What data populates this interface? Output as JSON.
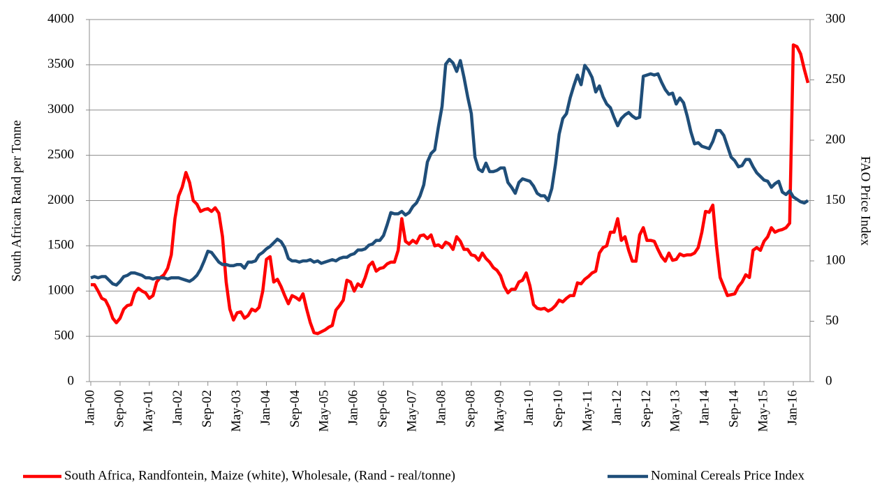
{
  "chart_data": {
    "type": "line",
    "ylabel": "South African Rand per Tonne",
    "y2label": "FAO Price Index",
    "categories": [
      "Jan-00",
      null,
      null,
      null,
      null,
      null,
      null,
      null,
      "Sep-00",
      null,
      null,
      null,
      null,
      null,
      null,
      null,
      "May-01",
      null,
      null,
      null,
      null,
      null,
      null,
      null,
      "Jan-02",
      null,
      null,
      null,
      null,
      null,
      null,
      null,
      "Sep-02",
      null,
      null,
      null,
      null,
      null,
      null,
      null,
      "May-03",
      null,
      null,
      null,
      null,
      null,
      null,
      null,
      "Jan-04",
      null,
      null,
      null,
      null,
      null,
      null,
      null,
      "Sep-04",
      null,
      null,
      null,
      null,
      null,
      null,
      null,
      "May-05",
      null,
      null,
      null,
      null,
      null,
      null,
      null,
      "Jan-06",
      null,
      null,
      null,
      null,
      null,
      null,
      null,
      "Sep-06",
      null,
      null,
      null,
      null,
      null,
      null,
      null,
      "May-07",
      null,
      null,
      null,
      null,
      null,
      null,
      null,
      "Jan-08",
      null,
      null,
      null,
      null,
      null,
      null,
      null,
      "Sep-08",
      null,
      null,
      null,
      null,
      null,
      null,
      null,
      "May-09",
      null,
      null,
      null,
      null,
      null,
      null,
      null,
      "Jan-10",
      null,
      null,
      null,
      null,
      null,
      null,
      null,
      "Sep-10",
      null,
      null,
      null,
      null,
      null,
      null,
      null,
      "May-11",
      null,
      null,
      null,
      null,
      null,
      null,
      null,
      "Jan-12",
      null,
      null,
      null,
      null,
      null,
      null,
      null,
      "Sep-12",
      null,
      null,
      null,
      null,
      null,
      null,
      null,
      "May-13",
      null,
      null,
      null,
      null,
      null,
      null,
      null,
      "Jan-14",
      null,
      null,
      null,
      null,
      null,
      null,
      null,
      "Sep-14",
      null,
      null,
      null,
      null,
      null,
      null,
      null,
      "May-15",
      null,
      null,
      null,
      null,
      null,
      null,
      null,
      "Jan-16",
      null,
      null,
      null,
      null
    ],
    "series": [
      {
        "name": "South Africa, Randfontein, Maize (white), Wholesale, (Rand - real/tonne)",
        "color": "#ff0000",
        "axis": "y",
        "values": [
          1070,
          1070,
          1000,
          920,
          900,
          820,
          700,
          650,
          700,
          800,
          840,
          850,
          980,
          1030,
          1000,
          980,
          920,
          950,
          1100,
          1150,
          1180,
          1250,
          1400,
          1800,
          2050,
          2150,
          2310,
          2200,
          2000,
          1960,
          1880,
          1900,
          1910,
          1880,
          1920,
          1860,
          1600,
          1100,
          800,
          680,
          760,
          770,
          700,
          730,
          800,
          780,
          820,
          1000,
          1350,
          1380,
          1100,
          1130,
          1050,
          950,
          860,
          950,
          930,
          900,
          970,
          800,
          650,
          540,
          530,
          550,
          570,
          600,
          620,
          790,
          840,
          900,
          1120,
          1100,
          1000,
          1080,
          1050,
          1150,
          1280,
          1320,
          1220,
          1250,
          1260,
          1300,
          1320,
          1320,
          1450,
          1800,
          1550,
          1520,
          1560,
          1530,
          1610,
          1620,
          1580,
          1620,
          1500,
          1510,
          1480,
          1540,
          1520,
          1460,
          1600,
          1550,
          1460,
          1460,
          1400,
          1390,
          1340,
          1420,
          1360,
          1320,
          1260,
          1230,
          1170,
          1050,
          980,
          1020,
          1020,
          1100,
          1120,
          1200,
          1060,
          850,
          810,
          800,
          810,
          780,
          800,
          840,
          900,
          880,
          920,
          950,
          950,
          1090,
          1080,
          1130,
          1160,
          1200,
          1220,
          1420,
          1480,
          1500,
          1650,
          1650,
          1800,
          1560,
          1600,
          1450,
          1330,
          1330,
          1620,
          1700,
          1560,
          1560,
          1550,
          1460,
          1380,
          1330,
          1420,
          1340,
          1350,
          1410,
          1390,
          1400,
          1400,
          1420,
          1480,
          1650,
          1880,
          1870,
          1950,
          1500,
          1150,
          1050,
          950,
          960,
          970,
          1050,
          1100,
          1180,
          1150,
          1450,
          1480,
          1450,
          1550,
          1600,
          1700,
          1650,
          1670,
          1680,
          1700,
          1750,
          3720,
          3700,
          3620,
          3450,
          3300
        ]
      },
      {
        "name": "Nominal Cereals Price Index",
        "color": "#1f4e79",
        "axis": "y2",
        "values": [
          86,
          87,
          86,
          87,
          87,
          84,
          81,
          80,
          83,
          87,
          88,
          90,
          90,
          89,
          88,
          86,
          86,
          85,
          86,
          86,
          86,
          85,
          86,
          86,
          86,
          85,
          84,
          83,
          85,
          88,
          93,
          100,
          108,
          107,
          103,
          99,
          97,
          97,
          96,
          96,
          97,
          97,
          94,
          99,
          99,
          100,
          105,
          107,
          110,
          112,
          115,
          118,
          116,
          111,
          102,
          100,
          100,
          99,
          100,
          100,
          101,
          99,
          100,
          98,
          99,
          100,
          101,
          100,
          102,
          103,
          103,
          105,
          106,
          109,
          109,
          110,
          113,
          114,
          117,
          117,
          121,
          130,
          140,
          139,
          139,
          141,
          138,
          140,
          145,
          148,
          154,
          163,
          182,
          189,
          192,
          211,
          228,
          263,
          267,
          264,
          257,
          266,
          252,
          236,
          222,
          186,
          176,
          174,
          181,
          174,
          174,
          175,
          177,
          177,
          165,
          161,
          156,
          165,
          168,
          167,
          166,
          162,
          156,
          154,
          154,
          150,
          160,
          180,
          205,
          218,
          222,
          235,
          245,
          254,
          246,
          262,
          258,
          252,
          240,
          245,
          236,
          230,
          227,
          219,
          212,
          218,
          221,
          223,
          220,
          218,
          219,
          253,
          254,
          255,
          254,
          255,
          248,
          242,
          238,
          239,
          230,
          235,
          231,
          220,
          207,
          197,
          198,
          195,
          194,
          193,
          199,
          208,
          208,
          204,
          195,
          186,
          183,
          178,
          179,
          184,
          184,
          178,
          173,
          170,
          167,
          166,
          161,
          164,
          166,
          157,
          155,
          158,
          153,
          151,
          149,
          148,
          150
        ]
      }
    ],
    "ylim": [
      0,
      4000
    ],
    "yticks": [
      0,
      500,
      1000,
      1500,
      2000,
      2500,
      3000,
      3500,
      4000
    ],
    "y2lim": [
      0,
      300
    ],
    "y2ticks": [
      0,
      50,
      100,
      150,
      200,
      250,
      300
    ],
    "grid": true,
    "legend": "bottom"
  }
}
